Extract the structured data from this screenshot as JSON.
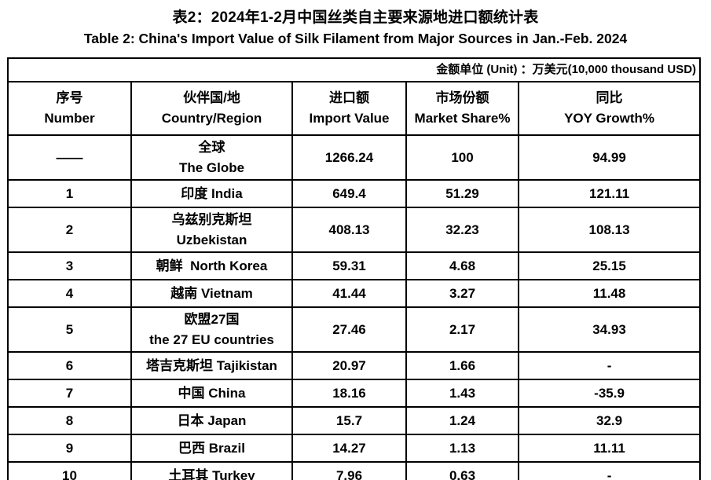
{
  "title_zh": "表2：2024年1-2月中国丝类自主要来源地进口额统计表",
  "title_en": "Table 2: China's Import Value of Silk Filament from Major Sources in Jan.-Feb. 2024",
  "unit_note": "金额单位 (Unit) ：万美元(10,000 thousand USD)",
  "columns": [
    {
      "zh": "序号",
      "en": "Number"
    },
    {
      "zh": "伙伴国/地",
      "en": "Country/Region"
    },
    {
      "zh": "进口额",
      "en": "Import Value"
    },
    {
      "zh": "市场份额",
      "en": "Market Share%"
    },
    {
      "zh": "同比",
      "en": "YOY Growth%"
    }
  ],
  "rows": [
    {
      "number": "——",
      "country_lines": [
        "全球",
        "The Globe"
      ],
      "import_value": "1266.24",
      "market_share": "100",
      "yoy_growth": "94.99"
    },
    {
      "number": "1",
      "country_lines": [
        "印度 India"
      ],
      "import_value": "649.4",
      "market_share": "51.29",
      "yoy_growth": "121.11"
    },
    {
      "number": "2",
      "country_lines": [
        "乌兹别克斯坦",
        "Uzbekistan"
      ],
      "import_value": "408.13",
      "market_share": "32.23",
      "yoy_growth": "108.13"
    },
    {
      "number": "3",
      "country_lines": [
        "朝鲜  North Korea"
      ],
      "import_value": "59.31",
      "market_share": "4.68",
      "yoy_growth": "25.15"
    },
    {
      "number": "4",
      "country_lines": [
        "越南 Vietnam"
      ],
      "import_value": "41.44",
      "market_share": "3.27",
      "yoy_growth": "11.48"
    },
    {
      "number": "5",
      "country_lines": [
        "欧盟27国",
        "the 27 EU countries"
      ],
      "import_value": "27.46",
      "market_share": "2.17",
      "yoy_growth": "34.93"
    },
    {
      "number": "6",
      "country_lines": [
        "塔吉克斯坦 Tajikistan"
      ],
      "import_value": "20.97",
      "market_share": "1.66",
      "yoy_growth": "-"
    },
    {
      "number": "7",
      "country_lines": [
        "中国 China"
      ],
      "import_value": "18.16",
      "market_share": "1.43",
      "yoy_growth": "-35.9"
    },
    {
      "number": "8",
      "country_lines": [
        "日本 Japan"
      ],
      "import_value": "15.7",
      "market_share": "1.24",
      "yoy_growth": "32.9"
    },
    {
      "number": "9",
      "country_lines": [
        "巴西 Brazil"
      ],
      "import_value": "14.27",
      "market_share": "1.13",
      "yoy_growth": "11.11"
    },
    {
      "number": "10",
      "country_lines": [
        "土耳其 Turkey"
      ],
      "import_value": "7.96",
      "market_share": "0.63",
      "yoy_growth": "-"
    }
  ]
}
